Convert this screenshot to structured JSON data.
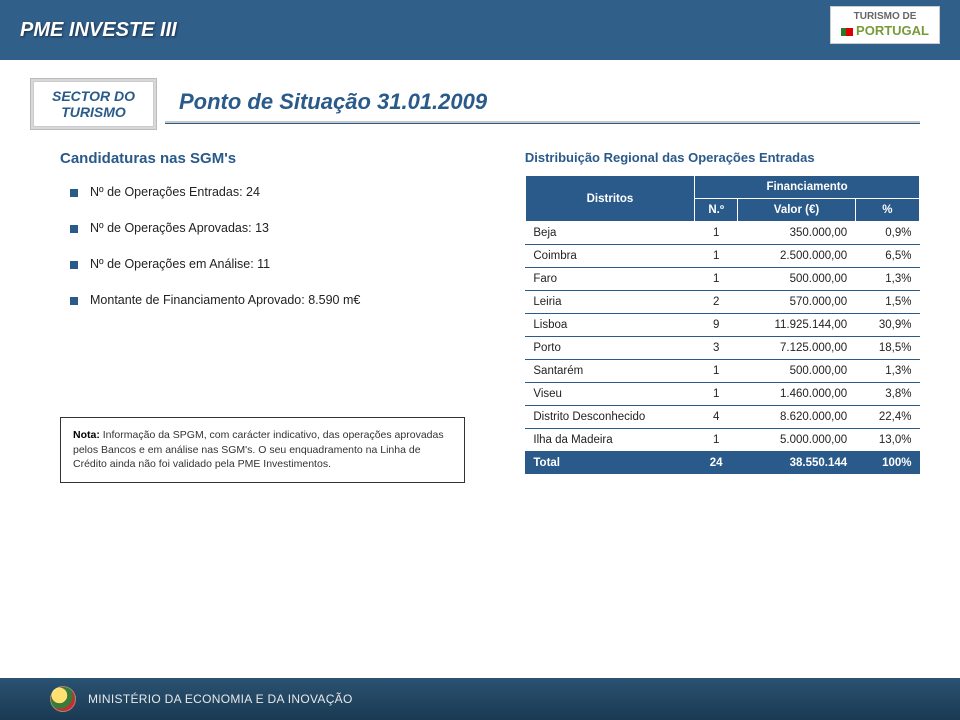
{
  "header": {
    "title": "PME INVESTE III",
    "logo_line1": "TURISMO DE",
    "logo_line2": "PORTUGAL"
  },
  "sector": {
    "line1": "SECTOR DO",
    "line2": "TURISMO"
  },
  "situacao": "Ponto de Situação 31.01.2009",
  "candidaturas": {
    "title": "Candidaturas nas SGM's",
    "bullets": [
      "Nº de Operações Entradas: 24",
      "Nº de Operações Aprovadas: 13",
      "Nº de Operações em Análise: 11",
      "Montante de Financiamento Aprovado: 8.590 m€"
    ]
  },
  "nota": {
    "label": "Nota:",
    "text": " Informação da SPGM, com carácter indicativo, das operações aprovadas pelos Bancos e em análise nas SGM's. O seu enquadramento na Linha de Crédito ainda não foi validado pela PME Investimentos."
  },
  "dist": {
    "title": "Distribuição Regional das Operações Entradas",
    "col_distritos": "Distritos",
    "col_financ": "Financiamento",
    "col_n": "N.º",
    "col_valor": "Valor (€)",
    "col_pct": "%",
    "rows": [
      {
        "d": "Beja",
        "n": "1",
        "v": "350.000,00",
        "p": "0,9%"
      },
      {
        "d": "Coimbra",
        "n": "1",
        "v": "2.500.000,00",
        "p": "6,5%"
      },
      {
        "d": "Faro",
        "n": "1",
        "v": "500.000,00",
        "p": "1,3%"
      },
      {
        "d": "Leiria",
        "n": "2",
        "v": "570.000,00",
        "p": "1,5%"
      },
      {
        "d": "Lisboa",
        "n": "9",
        "v": "11.925.144,00",
        "p": "30,9%"
      },
      {
        "d": "Porto",
        "n": "3",
        "v": "7.125.000,00",
        "p": "18,5%"
      },
      {
        "d": "Santarém",
        "n": "1",
        "v": "500.000,00",
        "p": "1,3%"
      },
      {
        "d": "Viseu",
        "n": "1",
        "v": "1.460.000,00",
        "p": "3,8%"
      },
      {
        "d": "Distrito Desconhecido",
        "n": "4",
        "v": "8.620.000,00",
        "p": "22,4%"
      },
      {
        "d": "Ilha da Madeira",
        "n": "1",
        "v": "5.000.000,00",
        "p": "13,0%"
      }
    ],
    "total": {
      "d": "Total",
      "n": "24",
      "v": "38.550.144",
      "p": "100%"
    }
  },
  "footer": {
    "text": "MINISTÉRIO DA ECONOMIA E DA INOVAÇÃO"
  },
  "colors": {
    "header_bg": "#305f8a",
    "accent": "#2a5a8a",
    "footer_grad_top": "#2a5272",
    "footer_grad_bot": "#1a3a52"
  }
}
